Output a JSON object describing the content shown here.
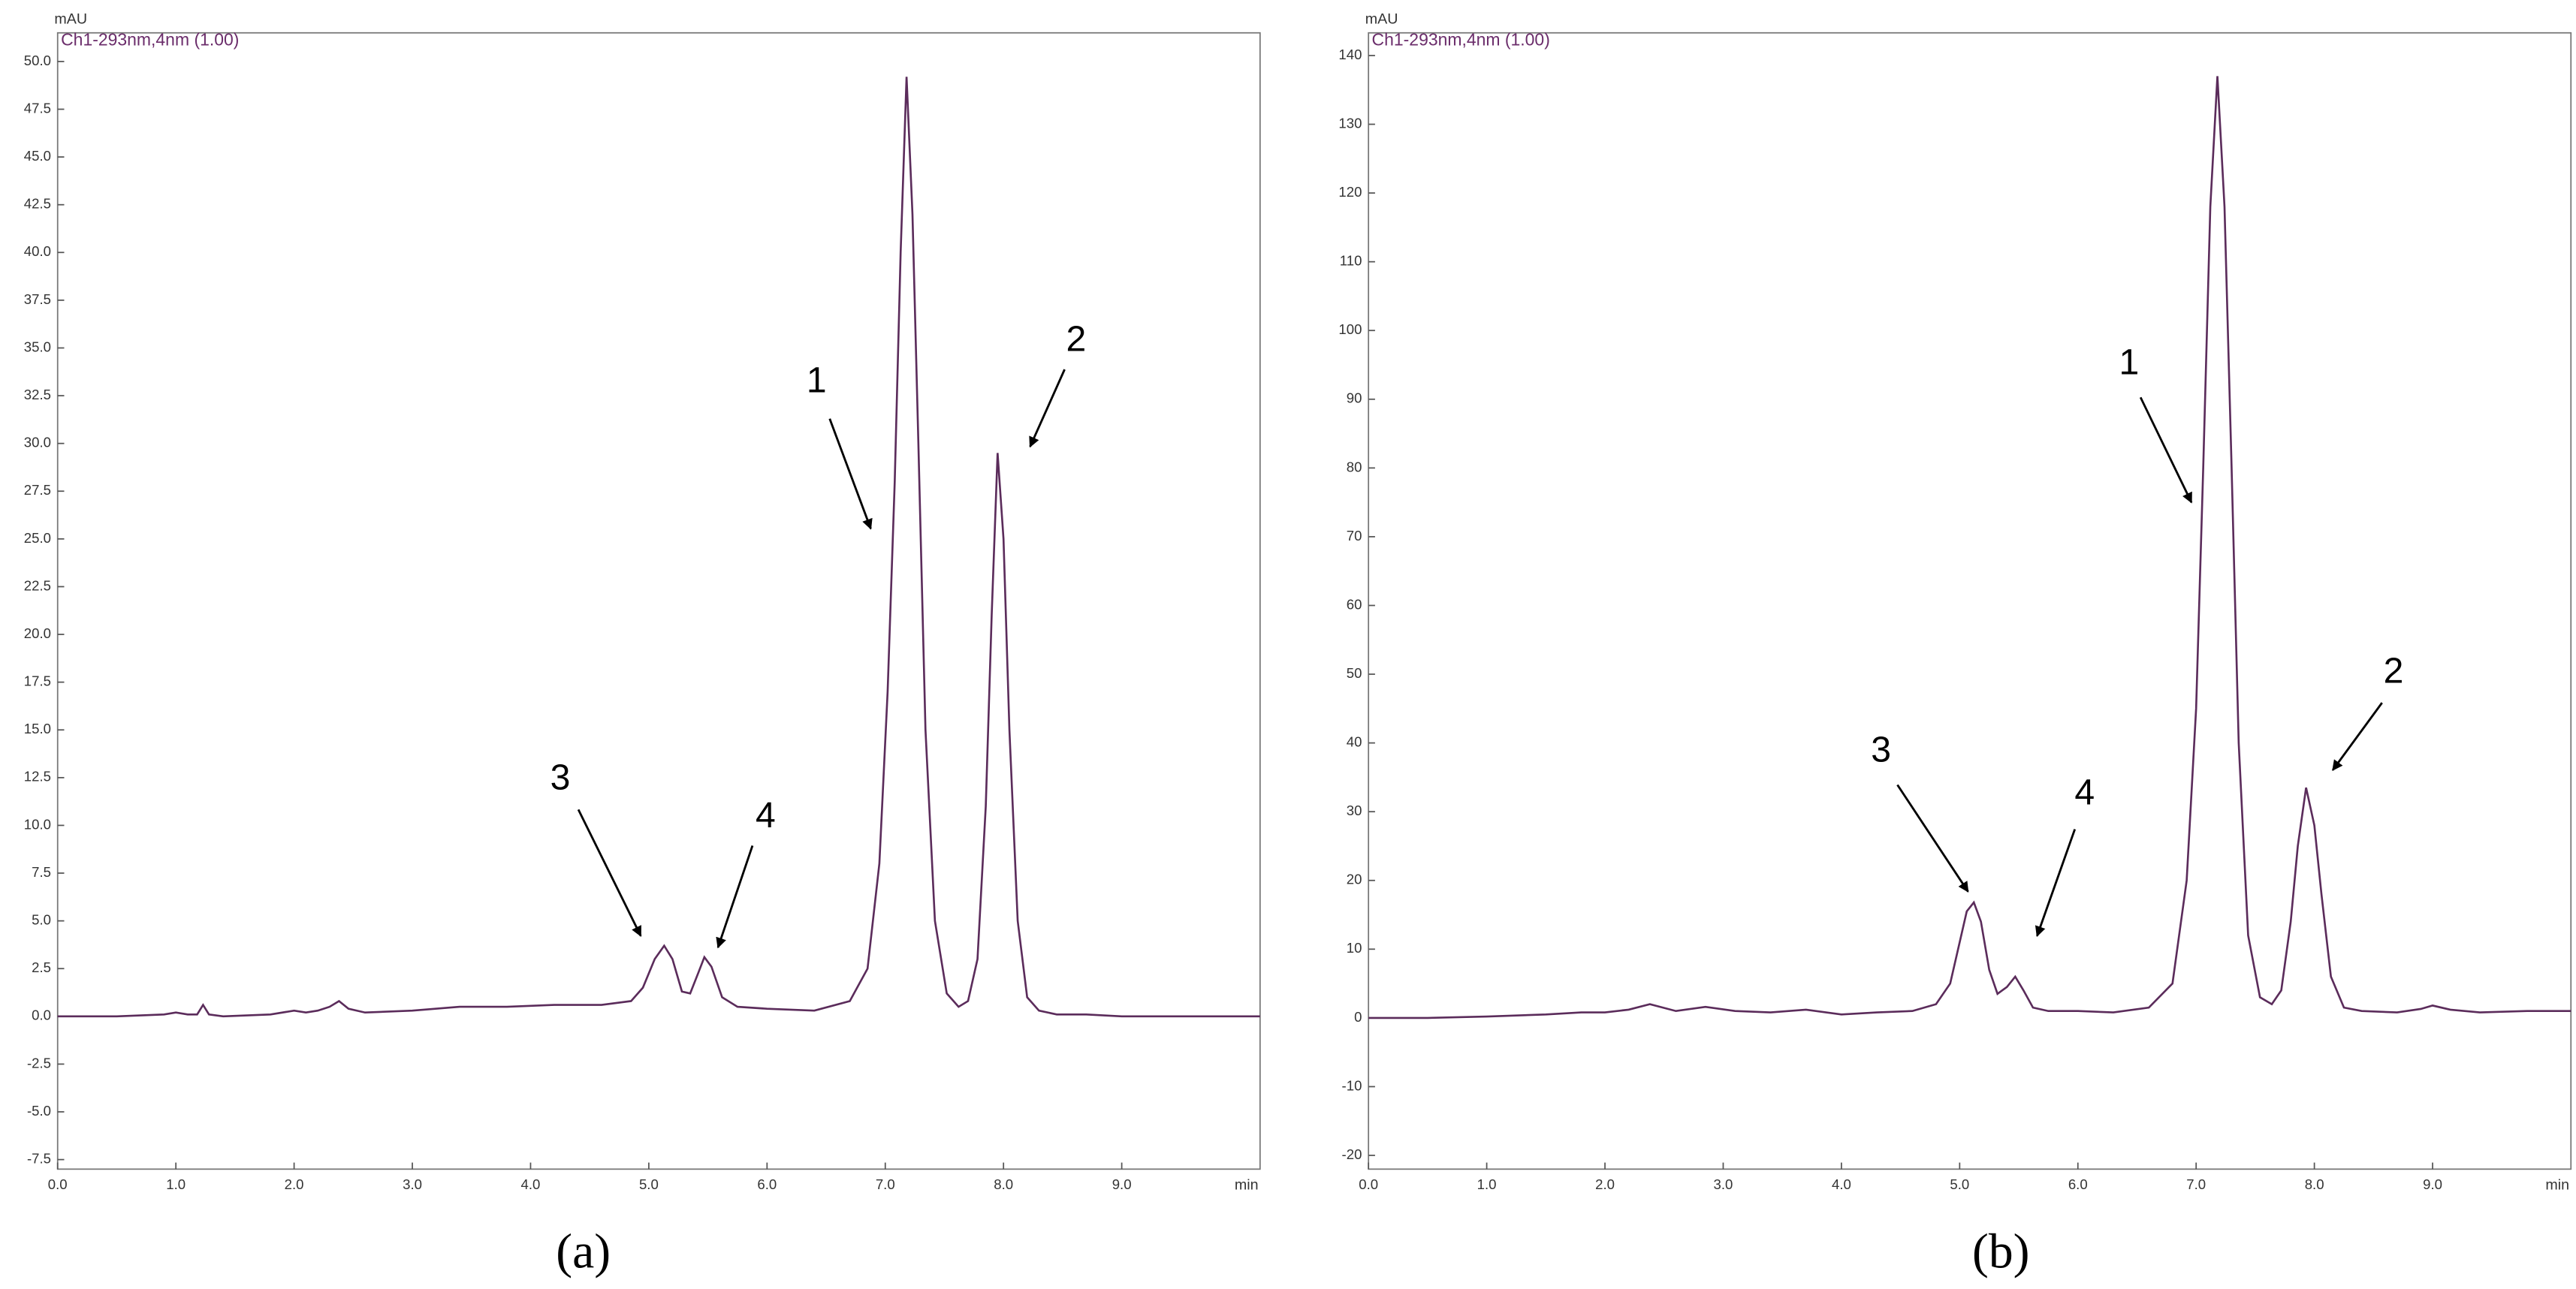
{
  "chart_data": [
    {
      "type": "line",
      "y_label": "mAU",
      "x_label": "min",
      "caption": "(a)",
      "annotations": [
        "1",
        "2",
        "3",
        "4"
      ],
      "x": [
        0,
        0.5,
        0.9,
        1.0,
        1.1,
        1.18,
        1.23,
        1.28,
        1.4,
        1.8,
        2.0,
        2.1,
        2.2,
        2.3,
        2.38,
        2.46,
        2.6,
        3.0,
        3.4,
        3.8,
        4.2,
        4.6,
        4.85,
        4.95,
        5.05,
        5.13,
        5.2,
        5.28,
        5.35,
        5.42,
        5.47,
        5.53,
        5.62,
        5.75,
        6.0,
        6.4,
        6.7,
        6.85,
        6.95,
        7.02,
        7.08,
        7.13,
        7.18,
        7.23,
        7.28,
        7.34,
        7.42,
        7.52,
        7.62,
        7.7,
        7.78,
        7.85,
        7.9,
        7.95,
        8.0,
        8.05,
        8.12,
        8.2,
        8.3,
        8.45,
        8.7,
        9.0,
        9.5,
        10.17
      ],
      "series": [
        {
          "name": "Ch1-293nm,4nm (1.00)",
          "color": "#5b2c5b",
          "values": [
            0,
            0,
            0.1,
            0.2,
            0.1,
            0.1,
            0.6,
            0.1,
            0,
            0.1,
            0.3,
            0.2,
            0.3,
            0.5,
            0.8,
            0.4,
            0.2,
            0.3,
            0.5,
            0.5,
            0.6,
            0.6,
            0.8,
            1.5,
            3.0,
            3.7,
            3.0,
            1.3,
            1.2,
            2.3,
            3.1,
            2.6,
            1.0,
            0.5,
            0.4,
            0.3,
            0.8,
            2.5,
            8,
            17,
            28,
            40,
            49.2,
            42,
            30,
            15,
            5,
            1.2,
            0.5,
            0.8,
            3,
            11,
            21,
            29.5,
            25,
            15,
            5,
            1,
            0.3,
            0.1,
            0.1,
            0,
            0,
            0
          ]
        }
      ],
      "xlim": [
        0,
        10.17
      ],
      "ylim": [
        -8,
        51.5
      ],
      "xticks": [
        {
          "value": 0,
          "label": "0.0"
        },
        {
          "value": 1,
          "label": "1.0"
        },
        {
          "value": 2,
          "label": "2.0"
        },
        {
          "value": 3,
          "label": "3.0"
        },
        {
          "value": 4,
          "label": "4.0"
        },
        {
          "value": 5,
          "label": "5.0"
        },
        {
          "value": 6,
          "label": "6.0"
        },
        {
          "value": 7,
          "label": "7.0"
        },
        {
          "value": 8,
          "label": "8.0"
        },
        {
          "value": 9,
          "label": "9.0"
        }
      ],
      "yticks": [
        {
          "value": 50,
          "label": "50.0"
        },
        47.5,
        {
          "value": 45,
          "label": "45.0"
        },
        42.5,
        {
          "value": 40,
          "label": "40.0"
        },
        37.5,
        {
          "value": 35,
          "label": "35.0"
        },
        32.5,
        {
          "value": 30,
          "label": "30.0"
        },
        27.5,
        {
          "value": 25,
          "label": "25.0"
        },
        22.5,
        {
          "value": 20,
          "label": "20.0"
        },
        17.5,
        {
          "value": 15,
          "label": "15.0"
        },
        12.5,
        {
          "value": 10,
          "label": "10.0"
        },
        7.5,
        {
          "value": 5,
          "label": "5.0"
        },
        2.5,
        {
          "value": 0,
          "label": "0.0"
        },
        -2.5,
        {
          "value": -5,
          "label": "-5.0"
        },
        -7.5
      ]
    },
    {
      "type": "line",
      "y_label": "mAU",
      "x_label": "min",
      "caption": "(b)",
      "annotations": [
        "1",
        "2",
        "3",
        "4"
      ],
      "x": [
        0,
        0.5,
        1.0,
        1.5,
        1.8,
        2.0,
        2.2,
        2.38,
        2.6,
        2.85,
        3.1,
        3.4,
        3.7,
        4.0,
        4.3,
        4.6,
        4.8,
        4.92,
        5.0,
        5.06,
        5.12,
        5.18,
        5.25,
        5.32,
        5.4,
        5.47,
        5.54,
        5.62,
        5.75,
        6.0,
        6.3,
        6.6,
        6.8,
        6.92,
        7.0,
        7.06,
        7.12,
        7.18,
        7.24,
        7.3,
        7.36,
        7.44,
        7.54,
        7.64,
        7.72,
        7.8,
        7.86,
        7.93,
        8.0,
        8.06,
        8.14,
        8.25,
        8.4,
        8.7,
        8.9,
        9.0,
        9.15,
        9.4,
        9.8,
        10.17
      ],
      "series": [
        {
          "name": "Ch1-293nm,4nm (1.00)",
          "color": "#5b2c5b",
          "values": [
            0,
            0,
            0.2,
            0.5,
            0.8,
            0.8,
            1.2,
            2.0,
            1.0,
            1.6,
            1.0,
            0.8,
            1.2,
            0.5,
            0.8,
            1.0,
            2,
            5,
            11,
            15.5,
            16.8,
            14,
            7,
            3.5,
            4.5,
            6,
            4,
            1.5,
            1,
            1,
            0.8,
            1.5,
            5,
            20,
            45,
            80,
            118,
            137,
            118,
            80,
            40,
            12,
            3,
            2,
            4,
            14,
            25,
            33.5,
            28,
            18,
            6,
            1.5,
            1,
            0.8,
            1.3,
            1.8,
            1.2,
            0.8,
            1,
            1
          ]
        }
      ],
      "xlim": [
        0,
        10.17
      ],
      "ylim": [
        -22,
        143.3
      ],
      "xticks": [
        {
          "value": 0,
          "label": "0.0"
        },
        {
          "value": 1,
          "label": "1.0"
        },
        {
          "value": 2,
          "label": "2.0"
        },
        {
          "value": 3,
          "label": "3.0"
        },
        {
          "value": 4,
          "label": "4.0"
        },
        {
          "value": 5,
          "label": "5.0"
        },
        {
          "value": 6,
          "label": "6.0"
        },
        {
          "value": 7,
          "label": "7.0"
        },
        {
          "value": 8,
          "label": "8.0"
        },
        {
          "value": 9,
          "label": "9.0"
        }
      ],
      "yticks": [
        140,
        130,
        120,
        110,
        100,
        90,
        80,
        70,
        60,
        50,
        40,
        30,
        20,
        10,
        0,
        -10,
        -20
      ]
    }
  ]
}
